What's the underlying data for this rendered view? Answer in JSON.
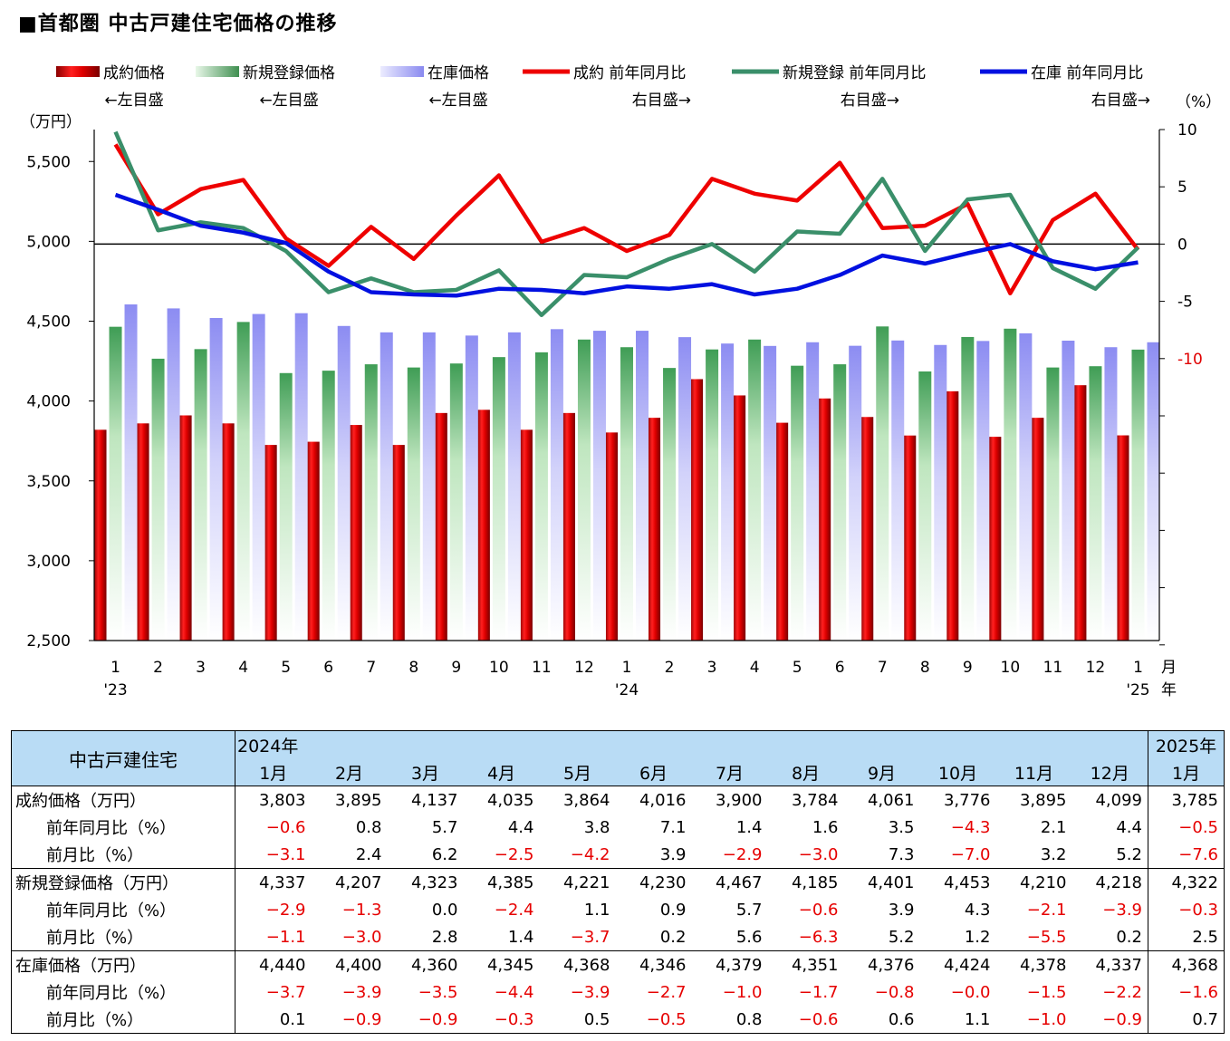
{
  "title": "■首都圏 中古戸建住宅価格の推移",
  "chart_data": {
    "type": "bar",
    "title": "■首都圏 中古戸建住宅価格の推移",
    "left_axis": {
      "unit": "（万円）",
      "ylim": [
        2500,
        5700
      ],
      "ticks": [
        "2,500",
        "3,000",
        "3,500",
        "4,000",
        "4,500",
        "5,000",
        "5,500"
      ]
    },
    "right_axis": {
      "unit": "（%）",
      "ylim": [
        -35,
        10
      ],
      "ticks": [
        "10",
        "5",
        "0",
        "-5",
        "-10"
      ]
    },
    "categories": [
      "1",
      "2",
      "3",
      "4",
      "5",
      "6",
      "7",
      "8",
      "9",
      "10",
      "11",
      "12",
      "1",
      "2",
      "3",
      "4",
      "5",
      "6",
      "7",
      "8",
      "9",
      "10",
      "11",
      "12",
      "1"
    ],
    "year_labels": [
      "'23",
      "'24",
      "'25"
    ],
    "axis_suffix_month": "月",
    "axis_suffix_year": "年",
    "bar_series": [
      {
        "name": "成約価格",
        "axis_note": "←左目盛",
        "color": "#e20000",
        "values": [
          3820,
          3860,
          3910,
          3860,
          3725,
          3745,
          3850,
          3725,
          3925,
          3945,
          3820,
          3925,
          3803,
          3895,
          4137,
          4035,
          3864,
          4016,
          3900,
          3784,
          4061,
          3776,
          3895,
          4099,
          3785
        ]
      },
      {
        "name": "新規登録価格",
        "axis_note": "←左目盛",
        "color": "#6aaa6a",
        "values": [
          4465,
          4265,
          4325,
          4495,
          4175,
          4190,
          4230,
          4210,
          4235,
          4275,
          4305,
          4385,
          4337,
          4207,
          4323,
          4385,
          4221,
          4230,
          4467,
          4185,
          4401,
          4453,
          4210,
          4218,
          4322
        ]
      },
      {
        "name": "在庫価格",
        "axis_note": "←左目盛",
        "color": "#9a9af0",
        "values": [
          4605,
          4580,
          4520,
          4545,
          4550,
          4470,
          4430,
          4430,
          4410,
          4430,
          4450,
          4440,
          4440,
          4400,
          4360,
          4345,
          4368,
          4346,
          4379,
          4351,
          4376,
          4424,
          4378,
          4337,
          4368
        ]
      }
    ],
    "line_series": [
      {
        "name": "成約 前年同月比",
        "axis_note": "右目盛→",
        "color": "#ee0000",
        "values": [
          8.7,
          2.6,
          4.8,
          5.6,
          0.5,
          -1.9,
          1.5,
          -1.3,
          2.5,
          6.0,
          0.2,
          1.4,
          -0.6,
          0.8,
          5.7,
          4.4,
          3.8,
          7.1,
          1.4,
          1.6,
          3.5,
          -4.3,
          2.1,
          4.4,
          -0.5
        ]
      },
      {
        "name": "新規登録 前年同月比",
        "axis_note": "右目盛→",
        "color": "#3a8f6a",
        "values": [
          9.8,
          1.2,
          1.9,
          1.4,
          -0.6,
          -4.2,
          -3.0,
          -4.2,
          -4.0,
          -2.3,
          -6.2,
          -2.7,
          -2.9,
          -1.3,
          0.0,
          -2.4,
          1.1,
          0.9,
          5.7,
          -0.6,
          3.9,
          4.3,
          -2.1,
          -3.9,
          -0.3
        ]
      },
      {
        "name": "在庫 前年同月比",
        "axis_note": "右目盛→",
        "color": "#0010e0",
        "values": [
          4.3,
          3.0,
          1.6,
          1.0,
          0.1,
          -2.4,
          -4.2,
          -4.4,
          -4.5,
          -3.9,
          -4.0,
          -4.3,
          -3.7,
          -3.9,
          -3.5,
          -4.4,
          -3.9,
          -2.7,
          -1.0,
          -1.7,
          -0.8,
          0.0,
          -1.5,
          -2.2,
          -1.6
        ]
      }
    ]
  },
  "table": {
    "corner_label": "中古戸建住宅",
    "year_header_left": "2024年",
    "year_header_right": "2025年",
    "months": [
      "1月",
      "2月",
      "3月",
      "4月",
      "5月",
      "6月",
      "7月",
      "8月",
      "9月",
      "10月",
      "11月",
      "12月",
      "1月"
    ],
    "groups": [
      {
        "rows": [
          {
            "label": "成約価格（万円）",
            "values": [
              "3,803",
              "3,895",
              "4,137",
              "4,035",
              "3,864",
              "4,016",
              "3,900",
              "3,784",
              "4,061",
              "3,776",
              "3,895",
              "4,099",
              "3,785"
            ]
          },
          {
            "label": "前年同月比（%）",
            "values": [
              "−0.6",
              "0.8",
              "5.7",
              "4.4",
              "3.8",
              "7.1",
              "1.4",
              "1.6",
              "3.5",
              "−4.3",
              "2.1",
              "4.4",
              "−0.5"
            ]
          },
          {
            "label": "前月比（%）",
            "values": [
              "−3.1",
              "2.4",
              "6.2",
              "−2.5",
              "−4.2",
              "3.9",
              "−2.9",
              "−3.0",
              "7.3",
              "−7.0",
              "3.2",
              "5.2",
              "−7.6"
            ]
          }
        ]
      },
      {
        "rows": [
          {
            "label": "新規登録価格（万円）",
            "values": [
              "4,337",
              "4,207",
              "4,323",
              "4,385",
              "4,221",
              "4,230",
              "4,467",
              "4,185",
              "4,401",
              "4,453",
              "4,210",
              "4,218",
              "4,322"
            ]
          },
          {
            "label": "前年同月比（%）",
            "values": [
              "−2.9",
              "−1.3",
              "0.0",
              "−2.4",
              "1.1",
              "0.9",
              "5.7",
              "−0.6",
              "3.9",
              "4.3",
              "−2.1",
              "−3.9",
              "−0.3"
            ]
          },
          {
            "label": "前月比（%）",
            "values": [
              "−1.1",
              "−3.0",
              "2.8",
              "1.4",
              "−3.7",
              "0.2",
              "5.6",
              "−6.3",
              "5.2",
              "1.2",
              "−5.5",
              "0.2",
              "2.5"
            ]
          }
        ]
      },
      {
        "rows": [
          {
            "label": "在庫価格（万円）",
            "values": [
              "4,440",
              "4,400",
              "4,360",
              "4,345",
              "4,368",
              "4,346",
              "4,379",
              "4,351",
              "4,376",
              "4,424",
              "4,378",
              "4,337",
              "4,368"
            ]
          },
          {
            "label": "前年同月比（%）",
            "values": [
              "−3.7",
              "−3.9",
              "−3.5",
              "−4.4",
              "−3.9",
              "−2.7",
              "−1.0",
              "−1.7",
              "−0.8",
              "−0.0",
              "−1.5",
              "−2.2",
              "−1.6"
            ]
          },
          {
            "label": "前月比（%）",
            "values": [
              "0.1",
              "−0.9",
              "−0.9",
              "−0.3",
              "0.5",
              "−0.5",
              "0.8",
              "−0.6",
              "0.6",
              "1.1",
              "−1.0",
              "−0.9",
              "0.7"
            ]
          }
        ]
      }
    ]
  }
}
